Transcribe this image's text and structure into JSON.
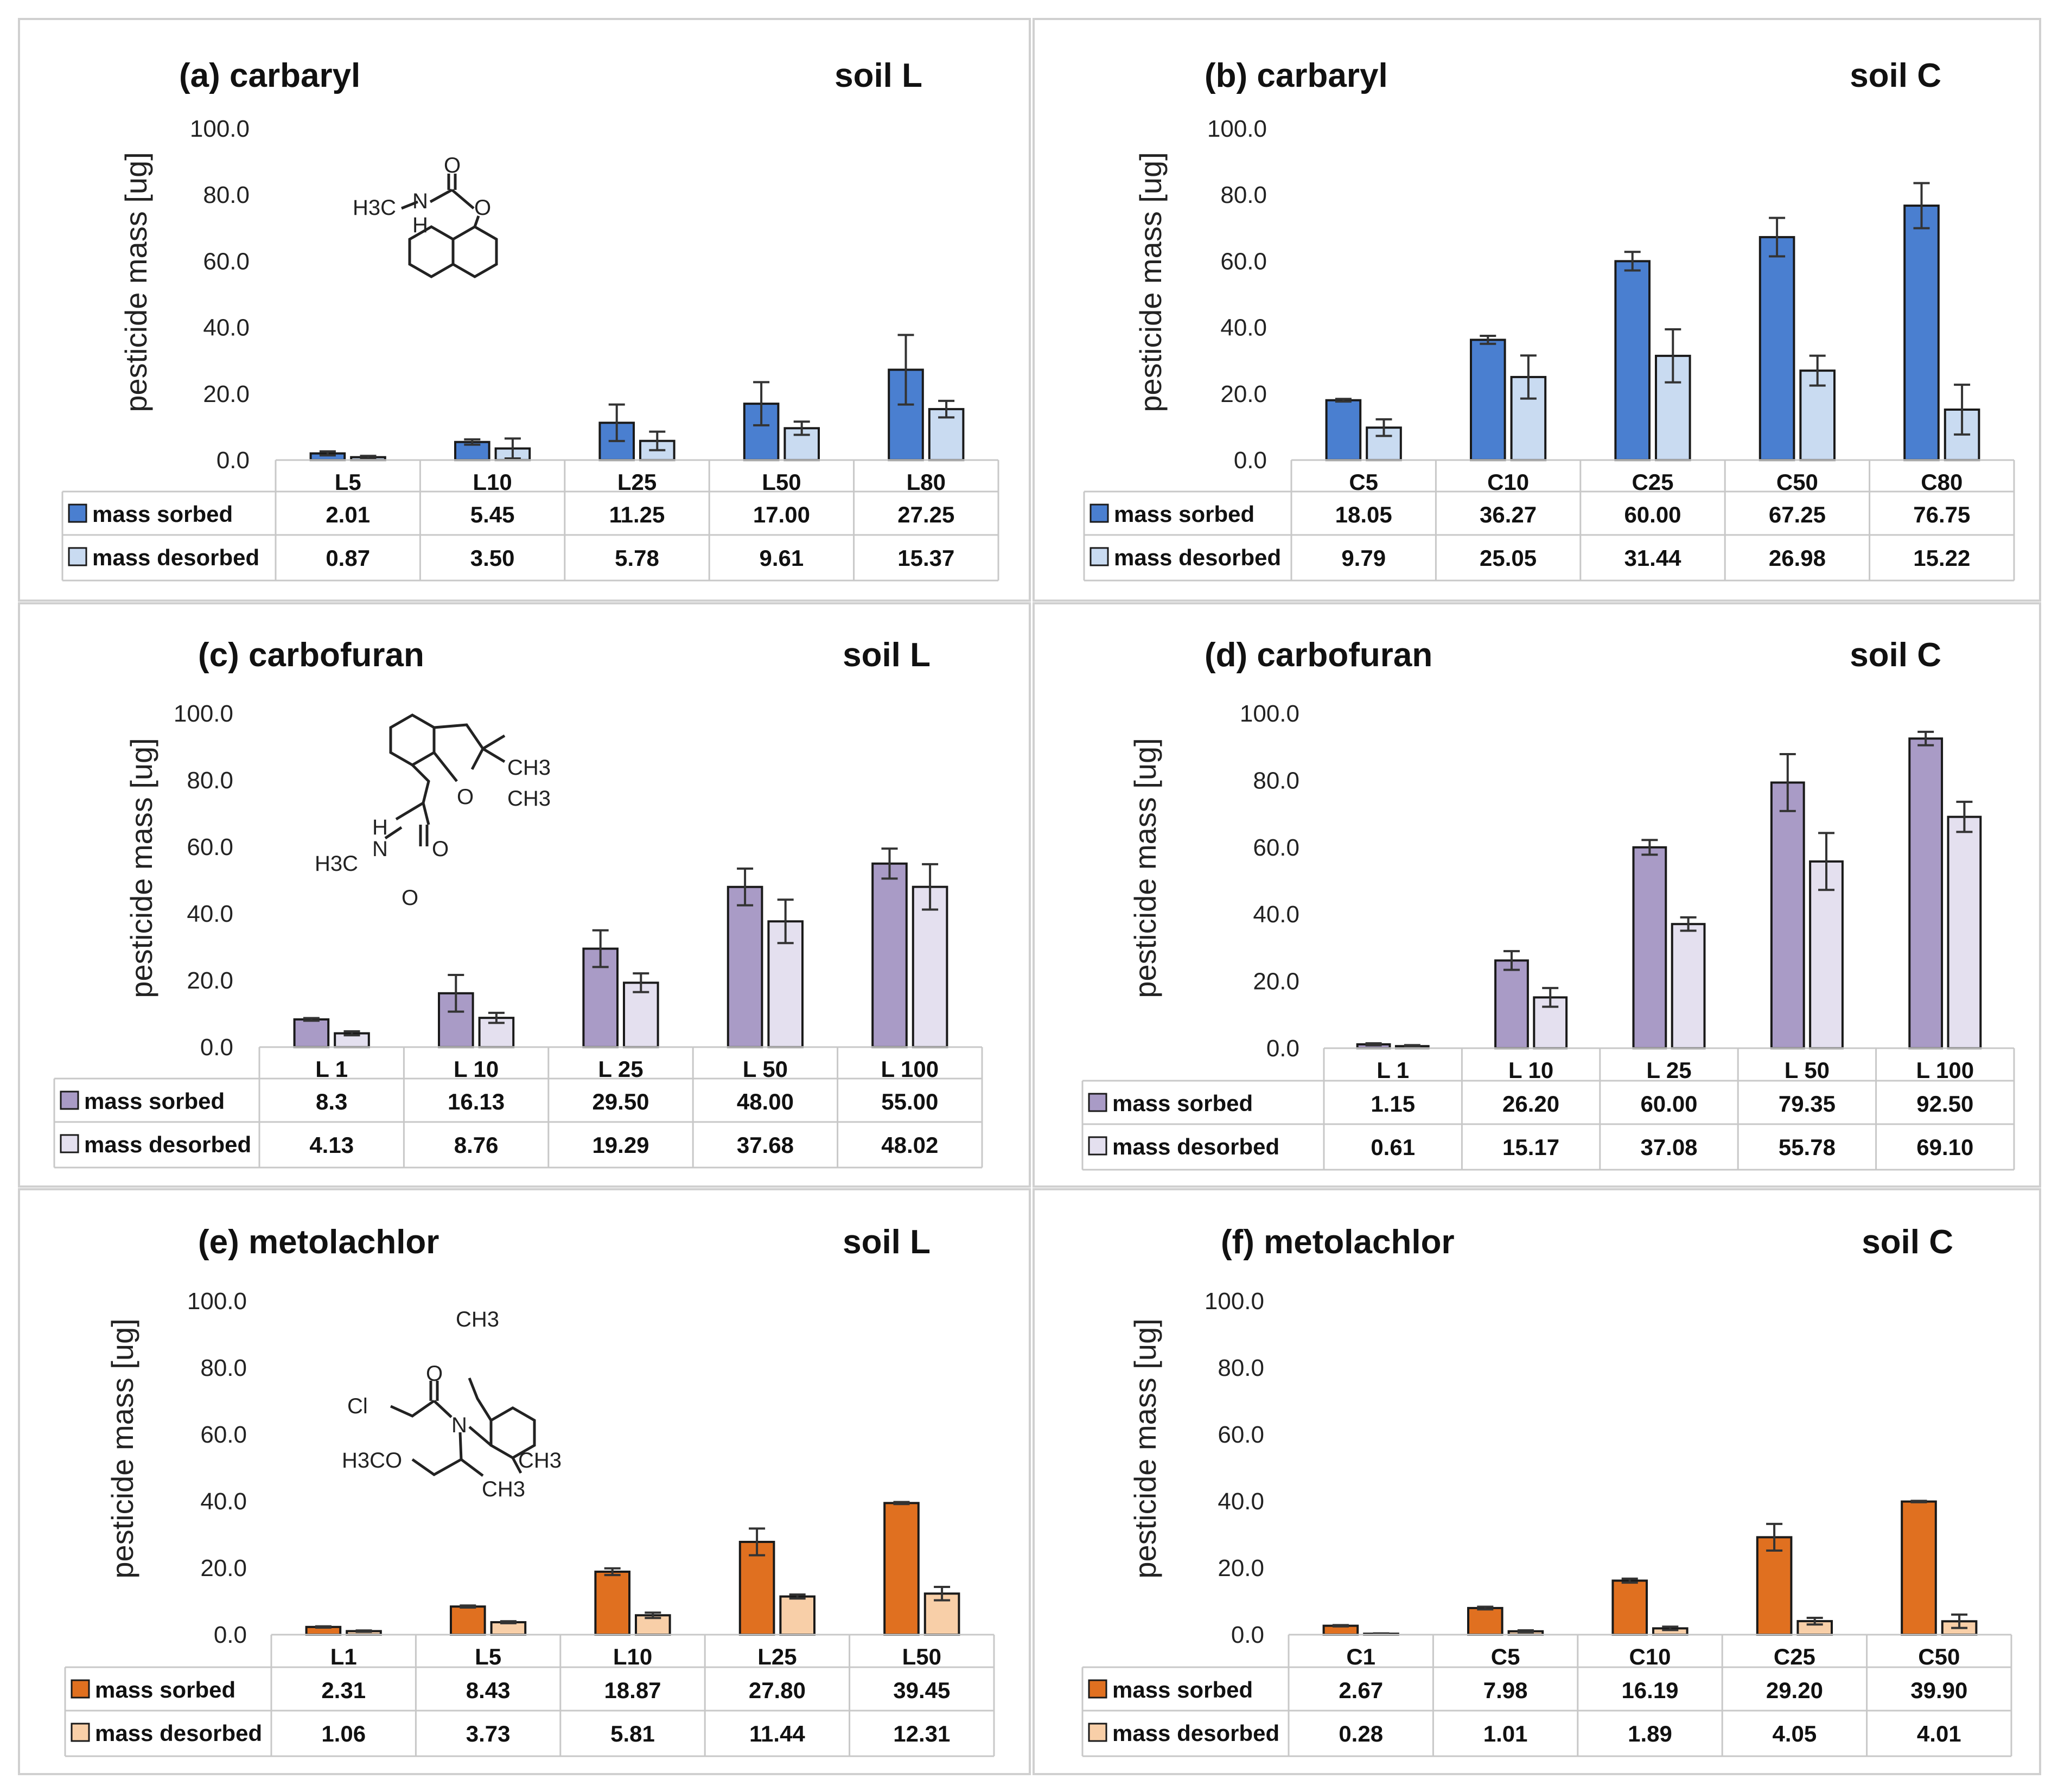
{
  "chart_data": [
    {
      "id": "a",
      "type": "bar",
      "title": "(a) carbaryl",
      "soil": "soil L",
      "ylabel": "pesticide mass [ug]",
      "yticks": [
        "0.0",
        "20.0",
        "40.0",
        "60.0",
        "80.0",
        "100.0"
      ],
      "ylim": [
        0,
        100
      ],
      "categories": [
        "L5",
        "L10",
        "L25",
        "L50",
        "L80"
      ],
      "series": [
        {
          "name": "mass sorbed",
          "color": "#4a7fd0",
          "values": [
            2.01,
            5.45,
            11.25,
            17.0,
            27.25
          ],
          "labels": [
            "2.01",
            "5.45",
            "11.25",
            "17.00",
            "27.25"
          ],
          "errors": [
            0.6,
            0.8,
            5.5,
            6.5,
            10.5
          ]
        },
        {
          "name": "mass desorbed",
          "color": "#c9dbf1",
          "values": [
            0.87,
            3.5,
            5.78,
            9.61,
            15.37
          ],
          "labels": [
            "0.87",
            "3.50",
            "5.78",
            "9.61",
            "15.37"
          ],
          "errors": [
            0.4,
            3.0,
            2.8,
            2.0,
            2.5
          ]
        }
      ],
      "molecule": {
        "labels": [
          "H3C",
          "N",
          "H",
          "O",
          "O"
        ]
      }
    },
    {
      "id": "b",
      "type": "bar",
      "title": "(b) carbaryl",
      "soil": "soil C",
      "ylabel": "pesticide mass [ug]",
      "yticks": [
        "0.0",
        "20.0",
        "40.0",
        "60.0",
        "80.0",
        "100.0"
      ],
      "ylim": [
        0,
        100
      ],
      "categories": [
        "C5",
        "C10",
        "C25",
        "C50",
        "C80"
      ],
      "series": [
        {
          "name": "mass sorbed",
          "color": "#4a7fd0",
          "values": [
            18.05,
            36.27,
            60.0,
            67.25,
            76.75
          ],
          "labels": [
            "18.05",
            "36.27",
            "60.00",
            "67.25",
            "76.75"
          ],
          "errors": [
            0.4,
            1.2,
            2.8,
            5.8,
            6.8
          ]
        },
        {
          "name": "mass desorbed",
          "color": "#c9dbf1",
          "values": [
            9.79,
            25.05,
            31.44,
            26.98,
            15.22
          ],
          "labels": [
            "9.79",
            "25.05",
            "31.44",
            "26.98",
            "15.22"
          ],
          "errors": [
            2.5,
            6.5,
            8.0,
            4.5,
            7.5
          ]
        }
      ]
    },
    {
      "id": "c",
      "type": "bar",
      "title": "(c)  carbofuran",
      "soil": "soil L",
      "ylabel": "pesticide mass [ug]",
      "yticks": [
        "0.0",
        "20.0",
        "40.0",
        "60.0",
        "80.0",
        "100.0"
      ],
      "ylim": [
        0,
        100
      ],
      "categories": [
        "L 1",
        "L 10",
        "L 25",
        "L 50",
        "L 100"
      ],
      "series": [
        {
          "name": "mass sorbed",
          "color": "#a99bc6",
          "values": [
            8.3,
            16.13,
            29.5,
            48.0,
            55.0
          ],
          "labels": [
            "8.3",
            "16.13",
            "29.50",
            "48.00",
            "55.00"
          ],
          "errors": [
            0.4,
            5.5,
            5.5,
            5.5,
            4.5
          ]
        },
        {
          "name": "mass desorbed",
          "color": "#e4e0ef",
          "values": [
            4.13,
            8.76,
            19.29,
            37.68,
            48.02
          ],
          "labels": [
            "4.13",
            "8.76",
            "19.29",
            "37.68",
            "48.02"
          ],
          "errors": [
            0.6,
            1.5,
            2.8,
            6.5,
            6.8
          ]
        }
      ],
      "molecule": {
        "labels": [
          "CH3",
          "CH3",
          "O",
          "H",
          "N",
          "H3C",
          "O",
          "O"
        ]
      }
    },
    {
      "id": "d",
      "type": "bar",
      "title": "(d)  carbofuran",
      "soil": "soil C",
      "ylabel": "pesticide mass [ug]",
      "yticks": [
        "0.0",
        "20.0",
        "40.0",
        "60.0",
        "80.0",
        "100.0"
      ],
      "ylim": [
        0,
        100
      ],
      "categories": [
        "L 1",
        "L 10",
        "L 25",
        "L 50",
        "L 100"
      ],
      "series": [
        {
          "name": "mass sorbed",
          "color": "#a99bc6",
          "values": [
            1.15,
            26.2,
            60.0,
            79.35,
            92.5
          ],
          "labels": [
            "1.15",
            "26.20",
            "60.00",
            "79.35",
            "92.50"
          ],
          "errors": [
            0.3,
            2.8,
            2.2,
            8.5,
            2.0
          ]
        },
        {
          "name": "mass desorbed",
          "color": "#e4e0ef",
          "values": [
            0.61,
            15.17,
            37.08,
            55.78,
            69.1
          ],
          "labels": [
            "0.61",
            "15.17",
            "37.08",
            "55.78",
            "69.10"
          ],
          "errors": [
            0.3,
            2.8,
            2.0,
            8.5,
            4.5
          ]
        }
      ]
    },
    {
      "id": "e",
      "type": "bar",
      "title": "(e) metolachlor",
      "soil": "soil L",
      "ylabel": "pesticide mass [ug]",
      "yticks": [
        "0.0",
        "20.0",
        "40.0",
        "60.0",
        "80.0",
        "100.0"
      ],
      "ylim": [
        0,
        100
      ],
      "categories": [
        "L1",
        "L5",
        "L10",
        "L25",
        "L50"
      ],
      "series": [
        {
          "name": "mass sorbed",
          "color": "#e07020",
          "values": [
            2.31,
            8.43,
            18.87,
            27.8,
            39.45
          ],
          "labels": [
            "2.31",
            "8.43",
            "18.87",
            "27.80",
            "39.45"
          ],
          "errors": [
            0.2,
            0.3,
            1.0,
            4.0,
            0.3
          ]
        },
        {
          "name": "mass desorbed",
          "color": "#f8cfa8",
          "values": [
            1.06,
            3.73,
            5.81,
            11.44,
            12.31
          ],
          "labels": [
            "1.06",
            "3.73",
            "5.81",
            "11.44",
            "12.31"
          ],
          "errors": [
            0.2,
            0.3,
            0.8,
            0.6,
            2.0
          ]
        }
      ],
      "molecule": {
        "labels": [
          "CH3",
          "O",
          "Cl",
          "N",
          "H3CO",
          "CH3",
          "CH3"
        ]
      }
    },
    {
      "id": "f",
      "type": "bar",
      "title": "(f) metolachlor",
      "soil": "soil C",
      "ylabel": "pesticide mass [ug]",
      "yticks": [
        "0.0",
        "20.0",
        "40.0",
        "60.0",
        "80.0",
        "100.0"
      ],
      "ylim": [
        0,
        100
      ],
      "categories": [
        "C1",
        "C5",
        "C10",
        "C25",
        "C50"
      ],
      "series": [
        {
          "name": "mass sorbed",
          "color": "#e07020",
          "values": [
            2.67,
            7.98,
            16.19,
            29.2,
            39.9
          ],
          "labels": [
            "2.67",
            "7.98",
            "16.19",
            "29.20",
            "39.90"
          ],
          "errors": [
            0.2,
            0.4,
            0.6,
            4.0,
            0.2
          ]
        },
        {
          "name": "mass desorbed",
          "color": "#f8cfa8",
          "values": [
            0.28,
            1.01,
            1.89,
            4.05,
            4.01
          ],
          "labels": [
            "0.28",
            "1.01",
            "1.89",
            "4.05",
            "4.01"
          ],
          "errors": [
            0.1,
            0.3,
            0.5,
            1.0,
            2.0
          ]
        }
      ]
    }
  ]
}
